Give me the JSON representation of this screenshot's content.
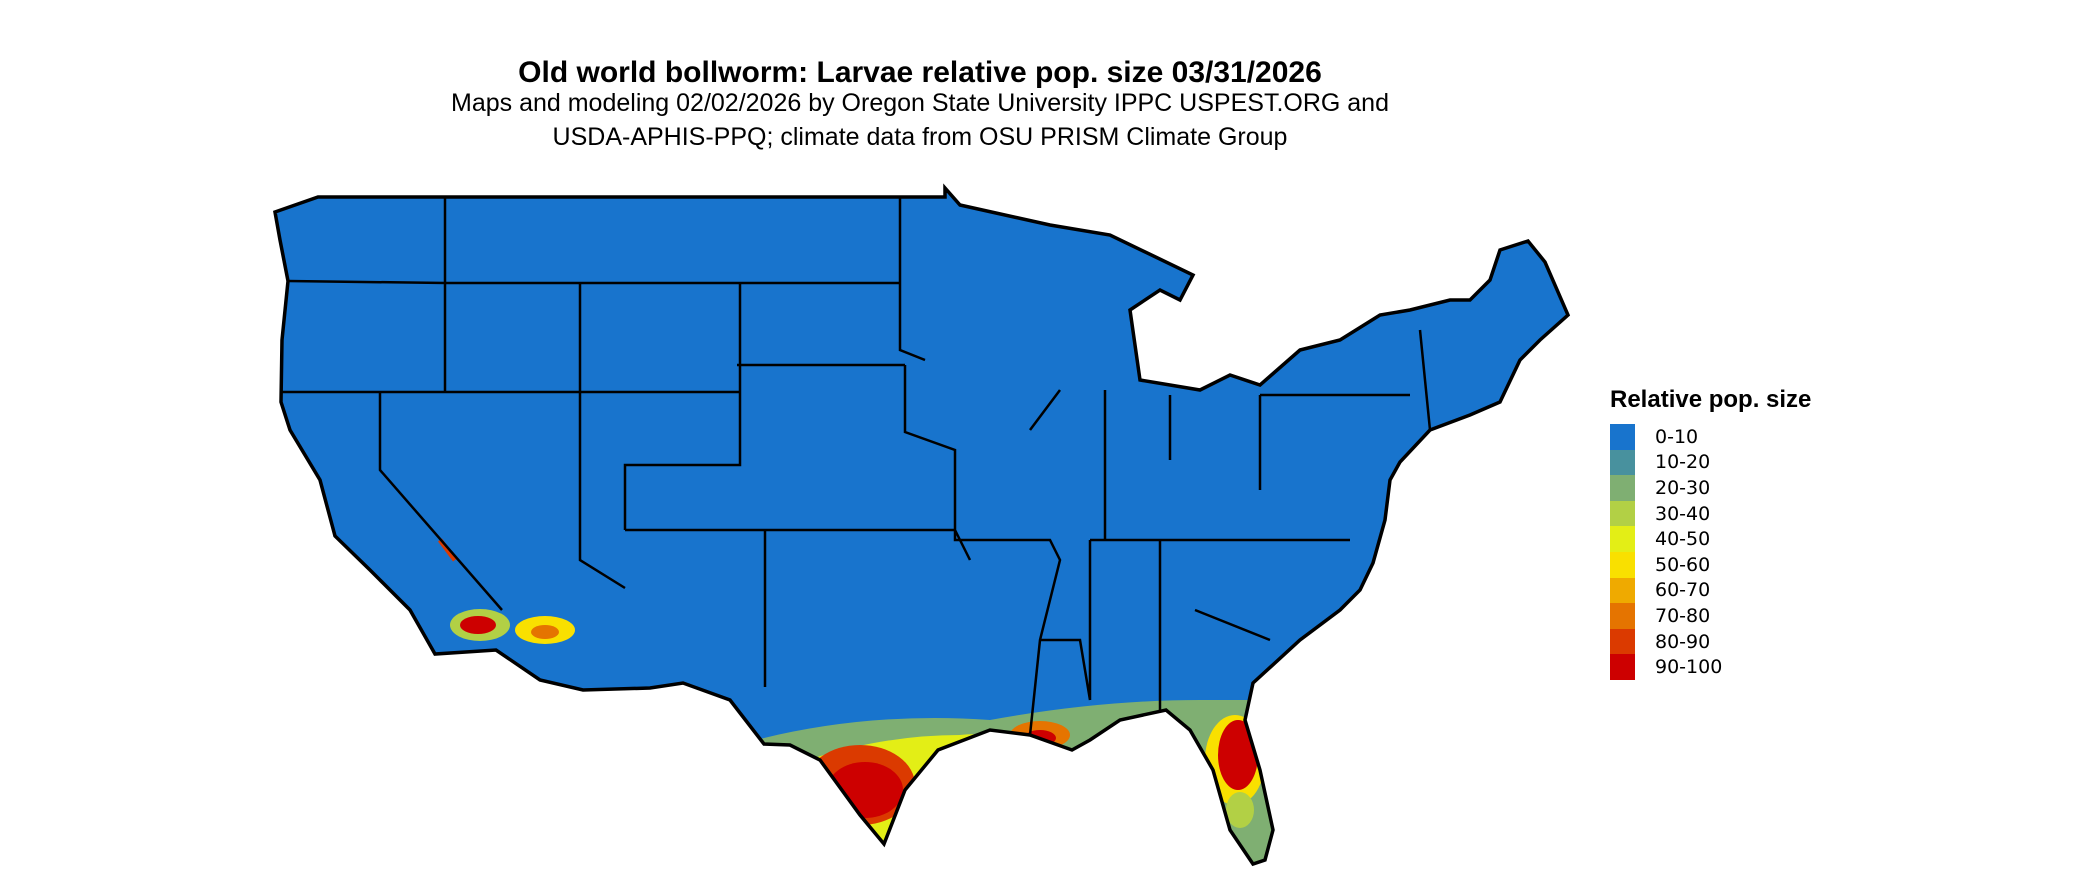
{
  "title": "Old world bollworm: Larvae relative pop. size 03/31/2026",
  "subtitle_line1": "Maps and modeling 02/02/2026 by Oregon State University IPPC USPEST.ORG and",
  "subtitle_line2": "USDA-APHIS-PPQ; climate data from OSU PRISM Climate Group",
  "legend": {
    "title": "Relative pop. size",
    "items": [
      {
        "label": "0-10",
        "color": "#1874CD"
      },
      {
        "label": "10-20",
        "color": "#48919E"
      },
      {
        "label": "20-30",
        "color": "#7FAF72"
      },
      {
        "label": "30-40",
        "color": "#B2D045"
      },
      {
        "label": "40-50",
        "color": "#E3EE16"
      },
      {
        "label": "50-60",
        "color": "#F9E000"
      },
      {
        "label": "60-70",
        "color": "#EFAA00"
      },
      {
        "label": "70-80",
        "color": "#E57400"
      },
      {
        "label": "80-90",
        "color": "#DB3A00"
      },
      {
        "label": "90-100",
        "color": "#CD0000"
      }
    ]
  }
}
